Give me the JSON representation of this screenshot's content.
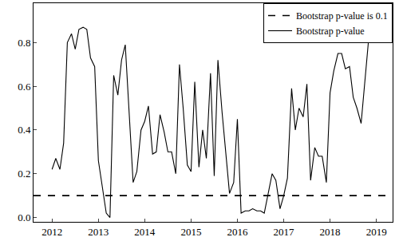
{
  "chart_data": {
    "type": "line",
    "xlim": [
      2011.6,
      2019.35
    ],
    "xticks": [
      2012,
      2013,
      2014,
      2015,
      2016,
      2017,
      2018,
      2019
    ],
    "ylim": [
      -0.02,
      0.98
    ],
    "yticks": [
      {
        "value": 0,
        "label": "0.0"
      },
      0.2,
      0.4,
      0.6,
      0.8
    ],
    "grid": false,
    "legend": "upper right",
    "series": [
      {
        "name": "Bootstrap p-value is 0.1",
        "color": "#000000",
        "line_style": "dashed",
        "x": [
          2011.6,
          2019.35
        ],
        "values": [
          0.1,
          0.1
        ]
      },
      {
        "name": "Bootstrap p-value",
        "color": "#000000",
        "line_style": "solid",
        "x": [
          2012.0,
          2012.08,
          2012.17,
          2012.25,
          2012.33,
          2012.42,
          2012.5,
          2012.58,
          2012.67,
          2012.75,
          2012.83,
          2012.92,
          2013.0,
          2013.08,
          2013.17,
          2013.25,
          2013.33,
          2013.42,
          2013.5,
          2013.58,
          2013.67,
          2013.75,
          2013.83,
          2013.92,
          2014.0,
          2014.08,
          2014.17,
          2014.25,
          2014.33,
          2014.42,
          2014.5,
          2014.58,
          2014.67,
          2014.75,
          2014.83,
          2014.92,
          2015.0,
          2015.08,
          2015.17,
          2015.25,
          2015.33,
          2015.42,
          2015.5,
          2015.58,
          2015.67,
          2015.75,
          2015.83,
          2015.92,
          2016.0,
          2016.08,
          2016.17,
          2016.25,
          2016.33,
          2016.42,
          2016.5,
          2016.58,
          2016.67,
          2016.75,
          2016.83,
          2016.92,
          2017.0,
          2017.08,
          2017.17,
          2017.25,
          2017.33,
          2017.42,
          2017.5,
          2017.58,
          2017.67,
          2017.75,
          2017.83,
          2017.92,
          2018.0,
          2018.08,
          2018.17,
          2018.25,
          2018.33,
          2018.42,
          2018.5,
          2018.58,
          2018.67,
          2018.75,
          2018.83,
          2018.92,
          2019.0,
          2019.08,
          2019.17
        ],
        "values": [
          0.22,
          0.27,
          0.22,
          0.34,
          0.8,
          0.84,
          0.77,
          0.86,
          0.87,
          0.86,
          0.73,
          0.69,
          0.26,
          0.14,
          0.02,
          0.0,
          0.65,
          0.56,
          0.72,
          0.79,
          0.46,
          0.16,
          0.21,
          0.4,
          0.44,
          0.51,
          0.29,
          0.3,
          0.47,
          0.39,
          0.3,
          0.3,
          0.2,
          0.7,
          0.5,
          0.24,
          0.21,
          0.62,
          0.23,
          0.4,
          0.27,
          0.66,
          0.19,
          0.72,
          0.48,
          0.3,
          0.11,
          0.16,
          0.45,
          0.02,
          0.03,
          0.03,
          0.04,
          0.03,
          0.03,
          0.02,
          0.12,
          0.2,
          0.17,
          0.04,
          0.1,
          0.18,
          0.59,
          0.4,
          0.5,
          0.46,
          0.61,
          0.17,
          0.32,
          0.28,
          0.28,
          0.16,
          0.57,
          0.67,
          0.75,
          0.75,
          0.68,
          0.69,
          0.55,
          0.5,
          0.43,
          0.62,
          0.81,
          0.84,
          0.81,
          0.84,
          0.81
        ]
      }
    ]
  }
}
